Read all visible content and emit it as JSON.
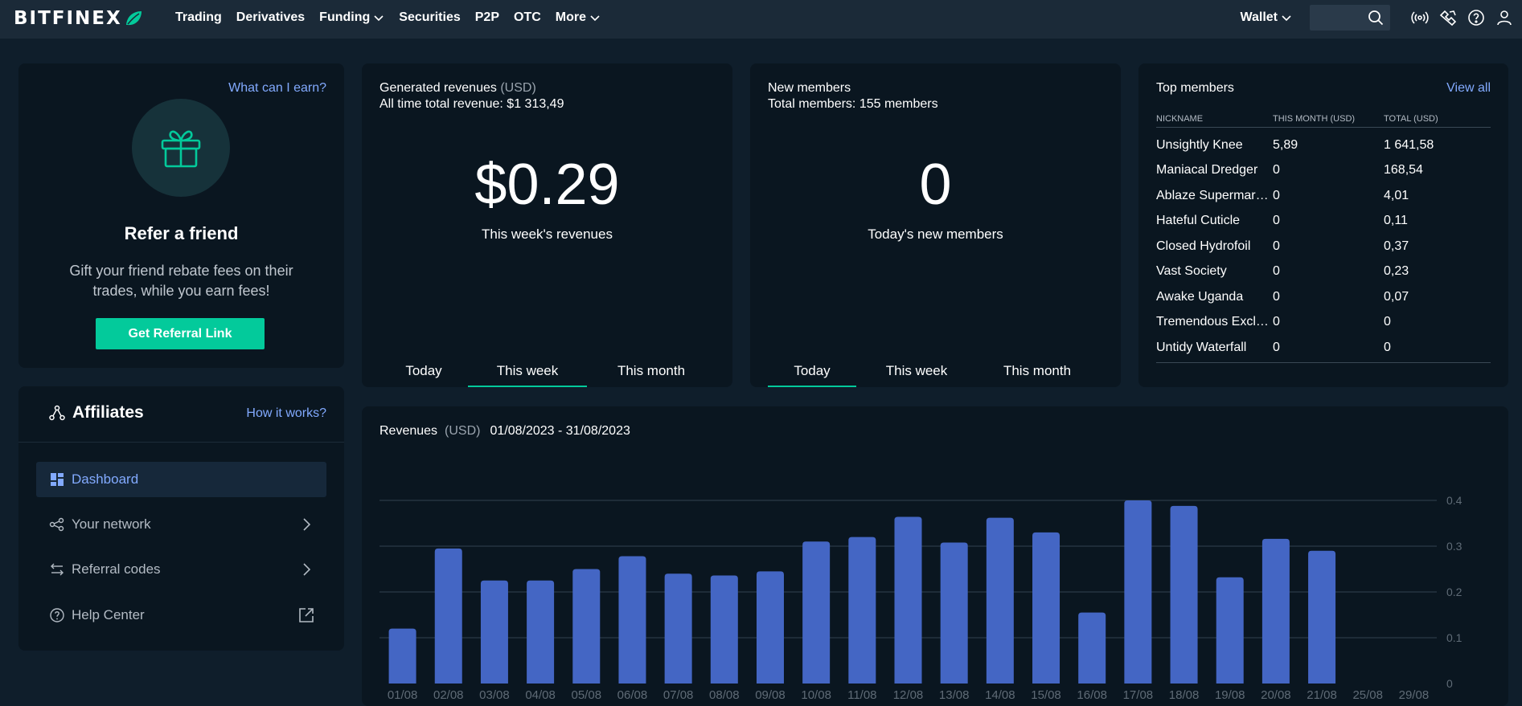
{
  "nav": {
    "logo_text": "BITFINEX",
    "links": [
      {
        "label": "Trading",
        "dropdown": false
      },
      {
        "label": "Derivatives",
        "dropdown": false
      },
      {
        "label": "Funding",
        "dropdown": true
      },
      {
        "label": "Securities",
        "dropdown": false
      },
      {
        "label": "P2P",
        "dropdown": false
      },
      {
        "label": "OTC",
        "dropdown": false
      },
      {
        "label": "More",
        "dropdown": true
      }
    ],
    "wallet_label": "Wallet",
    "search_placeholder": "",
    "icons": [
      "broadcast-icon",
      "handshake-icon",
      "help-icon",
      "user-icon"
    ]
  },
  "refer": {
    "earn_link": "What can I earn?",
    "title": "Refer a friend",
    "description": "Gift your friend rebate fees on their trades, while you earn fees!",
    "button": "Get Referral Link"
  },
  "affiliates": {
    "title": "Affiliates",
    "how_link": "How it works?",
    "menu": [
      {
        "label": "Dashboard",
        "icon": "dashboard-icon",
        "active": true,
        "right_icon": ""
      },
      {
        "label": "Your network",
        "icon": "network-icon",
        "active": false,
        "right_icon": "chevron-right-icon"
      },
      {
        "label": "Referral codes",
        "icon": "swap-icon",
        "active": false,
        "right_icon": "chevron-right-icon"
      },
      {
        "label": "Help Center",
        "icon": "help-icon",
        "active": false,
        "right_icon": "external-link-icon"
      }
    ]
  },
  "revenues": {
    "title": "Generated revenues",
    "unit": "(USD)",
    "total": "All time total revenue: $1 313,49",
    "value": "$0.29",
    "caption": "This week's revenues",
    "tabs": [
      "Today",
      "This week",
      "This month"
    ],
    "active_tab": 1
  },
  "members": {
    "title": "New members",
    "total": "Total members: 155 members",
    "value": "0",
    "caption": "Today's new members",
    "tabs": [
      "Today",
      "This week",
      "This month"
    ],
    "active_tab": 0
  },
  "top_members": {
    "title": "Top members",
    "view_all": "View all",
    "headers": [
      "NICKNAME",
      "THIS MONTH (USD)",
      "TOTAL (USD)"
    ],
    "rows": [
      [
        "Unsightly Knee",
        "5,89",
        "1 641,58"
      ],
      [
        "Maniacal Dredger",
        "0",
        "168,54"
      ],
      [
        "Ablaze Supermarket",
        "0",
        "4,01"
      ],
      [
        "Hateful Cuticle",
        "0",
        "0,11"
      ],
      [
        "Closed Hydrofoil",
        "0",
        "0,37"
      ],
      [
        "Vast Society",
        "0",
        "0,23"
      ],
      [
        "Awake Uganda",
        "0",
        "0,07"
      ],
      [
        "Tremendous Exclusive",
        "0",
        "0"
      ],
      [
        "Untidy Waterfall",
        "0",
        "0"
      ]
    ]
  },
  "revenue_chart": {
    "title": "Revenues",
    "unit": "(USD)",
    "range": "01/08/2023 - 31/08/2023"
  },
  "colors": {
    "accent": "#03ca9b",
    "link": "#82aaff",
    "bar": "#4466c4"
  },
  "chart_data": {
    "type": "bar",
    "categories": [
      "01/08",
      "02/08",
      "03/08",
      "04/08",
      "05/08",
      "06/08",
      "07/08",
      "08/08",
      "09/08",
      "10/08",
      "11/08",
      "12/08",
      "13/08",
      "14/08",
      "15/08",
      "16/08",
      "17/08",
      "18/08",
      "19/08",
      "20/08",
      "21/08",
      "25/08",
      "29/08"
    ],
    "values": [
      0.12,
      0.295,
      0.225,
      0.225,
      0.25,
      0.278,
      0.24,
      0.236,
      0.245,
      0.31,
      0.32,
      0.364,
      0.308,
      0.362,
      0.33,
      0.155,
      0.4,
      0.388,
      0.232,
      0.316,
      0.29,
      0,
      0
    ],
    "yticks": [
      "0",
      "0.1",
      "0.2",
      "0.3",
      "0.4"
    ],
    "ylim": [
      0,
      0.4
    ],
    "grid": true,
    "xlabel": "",
    "ylabel": ""
  }
}
